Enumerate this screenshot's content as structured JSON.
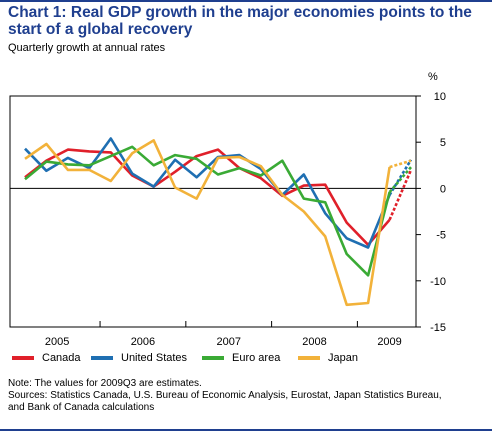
{
  "header": {
    "title": "Chart 1: Real GDP growth in the major economies points to the start of a global recovery",
    "subtitle": "Quarterly growth at annual rates"
  },
  "chart_data": {
    "type": "line",
    "unit_label": "%",
    "ylim": [
      -15,
      10
    ],
    "yticks": [
      10,
      5,
      0,
      -5,
      -10,
      -15
    ],
    "year_labels": [
      "2005",
      "2006",
      "2007",
      "2008",
      "2009"
    ],
    "x": [
      "2005Q1",
      "2005Q2",
      "2005Q3",
      "2005Q4",
      "2006Q1",
      "2006Q2",
      "2006Q3",
      "2006Q4",
      "2007Q1",
      "2007Q2",
      "2007Q3",
      "2007Q4",
      "2008Q1",
      "2008Q2",
      "2008Q3",
      "2008Q4",
      "2009Q1",
      "2009Q2",
      "2009Q3"
    ],
    "estimated_from_index": 17,
    "series": [
      {
        "name": "Canada",
        "color": "#e0202a",
        "values": [
          1.2,
          3.0,
          4.2,
          4.0,
          3.9,
          1.4,
          0.2,
          1.8,
          3.5,
          4.2,
          2.2,
          1.1,
          -0.8,
          0.3,
          0.4,
          -3.7,
          -6.1,
          -3.4,
          2.0
        ]
      },
      {
        "name": "United States",
        "color": "#1f6fb2",
        "values": [
          4.3,
          1.9,
          3.3,
          2.2,
          5.4,
          1.6,
          0.2,
          3.1,
          1.2,
          3.4,
          3.6,
          2.1,
          -0.7,
          1.5,
          -2.7,
          -5.4,
          -6.4,
          -0.7,
          3.1
        ]
      },
      {
        "name": "Euro area",
        "color": "#3aaa35",
        "values": [
          1.0,
          2.9,
          2.6,
          2.5,
          3.5,
          4.5,
          2.5,
          3.6,
          3.2,
          1.5,
          2.2,
          1.4,
          3.0,
          -1.1,
          -1.5,
          -7.1,
          -9.4,
          -0.4,
          2.3
        ]
      },
      {
        "name": "Japan",
        "color": "#f2b23a",
        "values": [
          3.2,
          4.8,
          2.0,
          2.0,
          0.8,
          3.8,
          5.2,
          0.1,
          -1.1,
          3.3,
          3.4,
          2.4,
          -0.7,
          -2.5,
          -5.2,
          -12.6,
          -12.4,
          2.3,
          3.0
        ]
      }
    ]
  },
  "note": {
    "line1": "Note: The values for 2009Q3 are estimates.",
    "line2": "Sources: Statistics Canada, U.S. Bureau of Economic Analysis, Eurostat, Japan Statistics Bureau,",
    "line3": "and Bank of Canada calculations"
  }
}
